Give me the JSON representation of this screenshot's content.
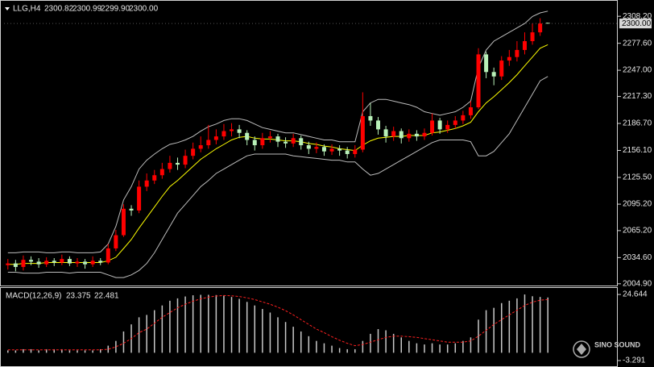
{
  "chart_data": [
    {
      "type": "candlestick",
      "title": "LLG,H4",
      "header_quote": [
        "2300.82",
        "2300.99",
        "2299.90",
        "2300.00"
      ],
      "up_color": "#ff0000",
      "down_color": "#b8f0b8",
      "band_color": "#bdbdbd",
      "ma_color": "#ffff00",
      "open": [
        2026,
        2028,
        2024,
        2032,
        2030,
        2027,
        2031,
        2029,
        2033,
        2028,
        2030,
        2027,
        2031,
        2029,
        2045,
        2060,
        2090,
        2088,
        2115,
        2122,
        2128,
        2135,
        2142,
        2140,
        2150,
        2158,
        2162,
        2168,
        2172,
        2178,
        2180,
        2176,
        2168,
        2162,
        2170,
        2172,
        2166,
        2164,
        2170,
        2162,
        2158,
        2160,
        2155,
        2158,
        2156,
        2152,
        2157,
        2195,
        2190,
        2180,
        2172,
        2178,
        2170,
        2175,
        2172,
        2176,
        2190,
        2180,
        2185,
        2190,
        2196,
        2205,
        2265,
        2245,
        2240,
        2258,
        2262,
        2270,
        2280,
        2290,
        2300.82
      ],
      "high": [
        2033,
        2032,
        2037,
        2036,
        2034,
        2035,
        2034,
        2038,
        2036,
        2034,
        2033,
        2036,
        2034,
        2050,
        2066,
        2095,
        2094,
        2122,
        2130,
        2134,
        2142,
        2150,
        2148,
        2157,
        2165,
        2172,
        2185,
        2180,
        2186,
        2187,
        2185,
        2179,
        2172,
        2176,
        2178,
        2175,
        2171,
        2175,
        2173,
        2166,
        2165,
        2163,
        2163,
        2162,
        2160,
        2162,
        2222,
        2210,
        2194,
        2184,
        2183,
        2181,
        2180,
        2179,
        2181,
        2198,
        2193,
        2190,
        2195,
        2201,
        2212,
        2272,
        2268,
        2250,
        2263,
        2270,
        2280,
        2290,
        2300,
        2306,
        2300.99
      ],
      "low": [
        2021,
        2019,
        2020,
        2026,
        2023,
        2024,
        2025,
        2026,
        2025,
        2024,
        2022,
        2024,
        2026,
        2027,
        2042,
        2058,
        2082,
        2085,
        2110,
        2118,
        2124,
        2131,
        2134,
        2136,
        2146,
        2154,
        2158,
        2163,
        2168,
        2172,
        2170,
        2162,
        2156,
        2158,
        2165,
        2160,
        2159,
        2160,
        2157,
        2152,
        2153,
        2150,
        2151,
        2150,
        2147,
        2148,
        2154,
        2184,
        2174,
        2165,
        2167,
        2164,
        2166,
        2167,
        2168,
        2173,
        2175,
        2176,
        2181,
        2186,
        2192,
        2203,
        2238,
        2230,
        2236,
        2252,
        2257,
        2265,
        2276,
        2286,
        2299.9
      ],
      "close": [
        2028,
        2024,
        2032,
        2030,
        2027,
        2031,
        2029,
        2033,
        2028,
        2030,
        2027,
        2031,
        2029,
        2045,
        2060,
        2090,
        2088,
        2115,
        2122,
        2128,
        2135,
        2142,
        2140,
        2150,
        2158,
        2162,
        2168,
        2172,
        2178,
        2180,
        2176,
        2168,
        2162,
        2170,
        2172,
        2166,
        2164,
        2170,
        2162,
        2158,
        2160,
        2155,
        2158,
        2156,
        2152,
        2157,
        2195,
        2190,
        2180,
        2172,
        2178,
        2170,
        2175,
        2172,
        2176,
        2190,
        2180,
        2185,
        2190,
        2196,
        2205,
        2265,
        2245,
        2240,
        2258,
        2262,
        2270,
        2280,
        2290,
        2300,
        2300
      ],
      "upper_band": [
        2040,
        2040,
        2041,
        2041,
        2041,
        2040,
        2040,
        2041,
        2041,
        2040,
        2040,
        2040,
        2041,
        2050,
        2070,
        2100,
        2115,
        2135,
        2145,
        2152,
        2158,
        2163,
        2165,
        2168,
        2172,
        2178,
        2183,
        2186,
        2190,
        2192,
        2192,
        2190,
        2186,
        2182,
        2180,
        2178,
        2176,
        2176,
        2174,
        2172,
        2170,
        2168,
        2168,
        2166,
        2166,
        2166,
        2200,
        2210,
        2214,
        2214,
        2212,
        2210,
        2208,
        2205,
        2200,
        2198,
        2196,
        2198,
        2200,
        2205,
        2212,
        2250,
        2270,
        2280,
        2285,
        2290,
        2295,
        2300,
        2308,
        2312,
        2314
      ],
      "lower_band": [
        2018,
        2018,
        2017,
        2017,
        2017,
        2018,
        2018,
        2018,
        2017,
        2018,
        2018,
        2018,
        2018,
        2015,
        2012,
        2012,
        2015,
        2020,
        2028,
        2040,
        2055,
        2070,
        2085,
        2095,
        2105,
        2115,
        2122,
        2130,
        2135,
        2140,
        2145,
        2150,
        2152,
        2152,
        2152,
        2152,
        2152,
        2150,
        2149,
        2148,
        2147,
        2146,
        2145,
        2145,
        2143,
        2143,
        2135,
        2128,
        2130,
        2135,
        2140,
        2145,
        2150,
        2155,
        2160,
        2165,
        2168,
        2168,
        2168,
        2168,
        2166,
        2150,
        2150,
        2155,
        2165,
        2175,
        2190,
        2205,
        2220,
        2235,
        2240
      ],
      "moving_average": [
        2027,
        2027,
        2028,
        2028,
        2028,
        2029,
        2029,
        2029,
        2029,
        2029,
        2029,
        2029,
        2029,
        2031,
        2035,
        2045,
        2055,
        2068,
        2080,
        2092,
        2104,
        2115,
        2122,
        2130,
        2138,
        2146,
        2152,
        2158,
        2163,
        2168,
        2171,
        2172,
        2170,
        2169,
        2169,
        2168,
        2167,
        2167,
        2166,
        2164,
        2163,
        2161,
        2160,
        2158,
        2157,
        2156,
        2162,
        2167,
        2170,
        2171,
        2172,
        2172,
        2173,
        2173,
        2173,
        2176,
        2177,
        2179,
        2181,
        2184,
        2188,
        2200,
        2210,
        2217,
        2225,
        2233,
        2242,
        2252,
        2262,
        2272,
        2276
      ],
      "ylim": [
        2002,
        2323
      ],
      "yticks": [
        {
          "value": 2308.2,
          "label": "2308.20"
        },
        {
          "value": 2277.6,
          "label": "2277.60"
        },
        {
          "value": 2247,
          "label": "2247.00"
        },
        {
          "value": 2217.3,
          "label": "2217.30"
        },
        {
          "value": 2186.7,
          "label": "2186.70"
        },
        {
          "value": 2156.1,
          "label": "2156.10"
        },
        {
          "value": 2125.5,
          "label": "2125.50"
        },
        {
          "value": 2095.2,
          "label": "2095.20"
        },
        {
          "value": 2065.2,
          "label": "2065.20"
        },
        {
          "value": 2034.6,
          "label": "2034.60"
        },
        {
          "value": 2004.9,
          "label": "2004.90"
        }
      ],
      "last_price": {
        "value": 2300,
        "label": "2300.00"
      }
    },
    {
      "type": "macd",
      "title": "MACD(12,26,9)",
      "histogram_color": "#c8c8c8",
      "signal_color": "#ff2020",
      "histogram": [
        1,
        1,
        1.5,
        1.5,
        1,
        1.5,
        1.5,
        1.5,
        1,
        1,
        1,
        1,
        1.5,
        3,
        5,
        9,
        12,
        15,
        16,
        18,
        20,
        22,
        23,
        23.8,
        24.3,
        24.5,
        24.5,
        24.4,
        24.2,
        23.6,
        22.8,
        21.5,
        20,
        18.5,
        17,
        15,
        13,
        11,
        9,
        7,
        5,
        4,
        3,
        2,
        1.5,
        1.5,
        5,
        8,
        10,
        9.5,
        8,
        6.5,
        5,
        4,
        3.5,
        4,
        3.5,
        3.5,
        4,
        5,
        6.5,
        14,
        18,
        19,
        21,
        22,
        23,
        24.644,
        23.9,
        23.6,
        23.375
      ],
      "signal": [
        1.2,
        1.2,
        1.2,
        1.2,
        1.2,
        1.2,
        1.2,
        1.2,
        1.2,
        1.2,
        1.2,
        1.2,
        1.2,
        1.5,
        2.5,
        4,
        6,
        8.5,
        10,
        12.5,
        15,
        17,
        19,
        20.5,
        21.8,
        22.8,
        23.5,
        24,
        24.2,
        24.1,
        23.8,
        23.2,
        22.5,
        21.5,
        20.5,
        19.3,
        17.8,
        16,
        14,
        12,
        10,
        8.5,
        6.8,
        5.3,
        4,
        3,
        3.5,
        4.5,
        5.5,
        6.5,
        7,
        7,
        6.8,
        6.5,
        6,
        5.5,
        5,
        4.5,
        4.5,
        4.5,
        5,
        7,
        9.5,
        12,
        14,
        16,
        18,
        20,
        21.4,
        22.2,
        22.481
      ],
      "ylim": [
        -3.291,
        27.4
      ],
      "yticks": [
        24.644,
        -3.291
      ]
    }
  ],
  "watermark": "SINO SOUND"
}
